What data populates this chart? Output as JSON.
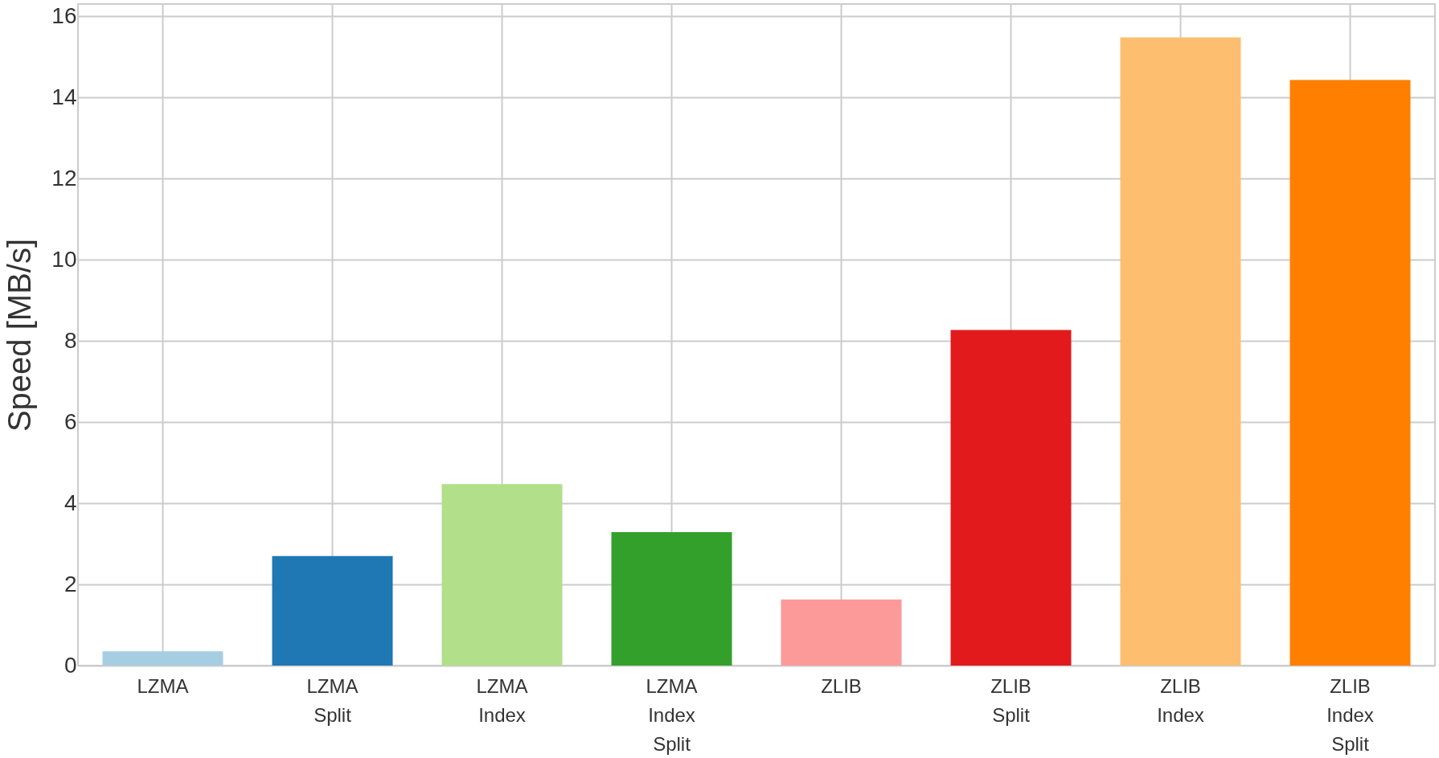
{
  "chart_data": {
    "type": "bar",
    "ylabel": "Speed [MB/s]",
    "categories": [
      "LZMA",
      "LZMA\n\nSplit",
      "LZMA\nIndex",
      "LZMA\nIndex\nSplit",
      "ZLIB",
      "ZLIB\n\nSplit",
      "ZLIB\nIndex",
      "ZLIB\nIndex\nSplit"
    ],
    "values": [
      0.35,
      2.7,
      4.47,
      3.29,
      1.63,
      8.27,
      15.48,
      14.43
    ],
    "colors": [
      "#a6cee3",
      "#1f78b4",
      "#b2df8a",
      "#33a02c",
      "#fb9a99",
      "#e31a1c",
      "#fdbf6f",
      "#ff7f00"
    ],
    "ylim": [
      0,
      16.3
    ],
    "yticks": [
      0,
      2,
      4,
      6,
      8,
      10,
      12,
      14,
      16
    ],
    "grid": true
  }
}
